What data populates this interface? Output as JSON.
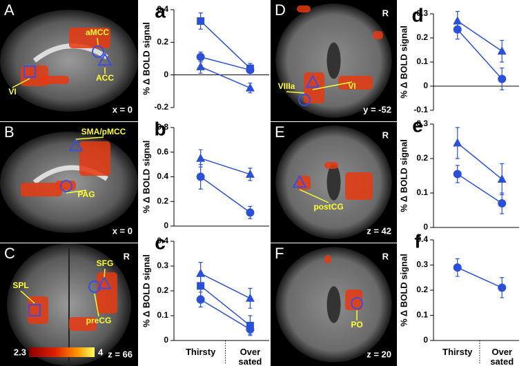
{
  "chart_data": [
    {
      "type": "line",
      "panel": "a",
      "y_label": "% Δ BOLD signal",
      "categories": [
        null,
        null
      ],
      "color": "#2b50d8",
      "ylim": [
        -0.2,
        0.4
      ],
      "yticks": [
        -0.2,
        0,
        0.2,
        0.4
      ],
      "series": [
        {
          "marker": "square",
          "values": [
            0.33,
            0.04
          ],
          "errors": [
            0.05,
            0.03
          ]
        },
        {
          "marker": "circle",
          "values": [
            0.11,
            0.03
          ],
          "errors": [
            0.03,
            0.03
          ]
        },
        {
          "marker": "triangle",
          "values": [
            0.05,
            -0.08
          ],
          "errors": [
            0.04,
            0.03
          ]
        }
      ]
    },
    {
      "type": "line",
      "panel": "b",
      "y_label": "% Δ BOLD signal",
      "categories": [
        null,
        null
      ],
      "color": "#2b50d8",
      "ylim": [
        0,
        0.8
      ],
      "yticks": [
        0,
        0.2,
        0.4,
        0.6,
        0.8
      ],
      "series": [
        {
          "marker": "triangle",
          "values": [
            0.55,
            0.42
          ],
          "errors": [
            0.07,
            0.05
          ]
        },
        {
          "marker": "circle",
          "values": [
            0.4,
            0.11
          ],
          "errors": [
            0.1,
            0.05
          ]
        }
      ]
    },
    {
      "type": "line",
      "panel": "c",
      "y_label": "% Δ BOLD signal",
      "categories": [
        "Thirsty",
        "Over sated"
      ],
      "color": "#2b50d8",
      "ylim": [
        0,
        0.4
      ],
      "yticks": [
        0,
        0.1,
        0.2,
        0.3,
        0.4
      ],
      "series": [
        {
          "marker": "triangle",
          "values": [
            0.27,
            0.17
          ],
          "errors": [
            0.045,
            0.04
          ]
        },
        {
          "marker": "square",
          "values": [
            0.22,
            0.06
          ],
          "errors": [
            0.04,
            0.04
          ]
        },
        {
          "marker": "circle",
          "values": [
            0.165,
            0.045
          ],
          "errors": [
            0.03,
            0.02
          ]
        }
      ]
    },
    {
      "type": "line",
      "panel": "d",
      "y_label": "% Δ BOLD signal",
      "categories": [
        null,
        null
      ],
      "color": "#2b50d8",
      "ylim": [
        -0.1,
        0.3
      ],
      "yticks": [
        -0.1,
        0,
        0.1,
        0.2,
        0.3
      ],
      "series": [
        {
          "marker": "triangle",
          "values": [
            0.27,
            0.145
          ],
          "errors": [
            0.04,
            0.045
          ]
        },
        {
          "marker": "circle",
          "values": [
            0.235,
            0.03
          ],
          "errors": [
            0.04,
            0.045
          ]
        }
      ]
    },
    {
      "type": "line",
      "panel": "e",
      "y_label": "% Δ BOLD signal",
      "categories": [
        null,
        null
      ],
      "color": "#2b50d8",
      "ylim": [
        0,
        0.3
      ],
      "yticks": [
        0,
        0.1,
        0.2,
        0.3
      ],
      "series": [
        {
          "marker": "triangle",
          "values": [
            0.245,
            0.14
          ],
          "errors": [
            0.045,
            0.045
          ]
        },
        {
          "marker": "circle",
          "values": [
            0.155,
            0.07
          ],
          "errors": [
            0.025,
            0.03
          ]
        }
      ]
    },
    {
      "type": "line",
      "panel": "f",
      "y_label": "% Δ BOLD signal",
      "categories": [
        "Thirsty",
        "Over sated"
      ],
      "color": "#2b50d8",
      "ylim": [
        0,
        0.4
      ],
      "yticks": [
        0,
        0.1,
        0.2,
        0.3,
        0.4
      ],
      "series": [
        {
          "marker": "circle",
          "values": [
            0.29,
            0.21
          ],
          "errors": [
            0.035,
            0.04
          ]
        }
      ]
    }
  ],
  "brain_panels": [
    {
      "letter": "A",
      "coordinate": "x = 0",
      "regions": [
        "VI",
        "aMCC",
        "ACC"
      ]
    },
    {
      "letter": "B",
      "coordinate": "x = 0",
      "regions": [
        "SMA/pMCC",
        "PAG"
      ]
    },
    {
      "letter": "C",
      "orientation": "R",
      "coordinate": "z = 66",
      "regions": [
        "SFG",
        "SPL",
        "preCG"
      ]
    },
    {
      "letter": "D",
      "orientation": "R",
      "coordinate": "y = -52",
      "regions": [
        "VIIIa",
        "VI"
      ]
    },
    {
      "letter": "E",
      "orientation": "R",
      "coordinate": "z = 42",
      "regions": [
        "postCG"
      ]
    },
    {
      "letter": "F",
      "orientation": "R",
      "coordinate": "z = 20",
      "regions": [
        "PO"
      ]
    }
  ],
  "colorbar": {
    "min": 2.3,
    "max": 4
  }
}
